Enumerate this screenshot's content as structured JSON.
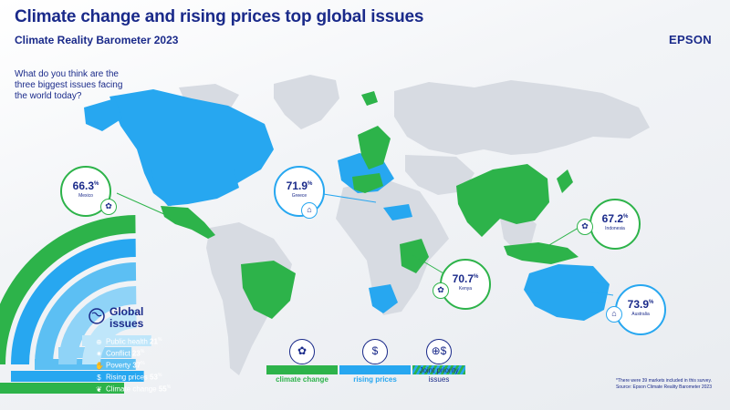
{
  "header": {
    "title": "Climate change and rising prices top global issues",
    "subtitle": "Climate Reality Barometer 2023",
    "brand": "EPSON"
  },
  "question": "What do you think are the three biggest issues facing the world today?",
  "colors": {
    "climate": "#2db34a",
    "prices": "#27a7f0",
    "text": "#1a2a8a",
    "land": "#d7dbe2"
  },
  "callouts": [
    {
      "value": "66.3",
      "unit": "%",
      "country": "Mexico",
      "issue": "climate change",
      "icon": "globe-leaf-icon"
    },
    {
      "value": "71.9",
      "unit": "%",
      "country": "Greece",
      "issue": "rising prices",
      "icon": "house-icon"
    },
    {
      "value": "67.2",
      "unit": "%",
      "country": "Indonesia",
      "issue": "climate change",
      "icon": "globe-leaf-icon"
    },
    {
      "value": "70.7",
      "unit": "%",
      "country": "Kenya",
      "issue": "climate change",
      "icon": "globe-leaf-icon"
    },
    {
      "value": "73.9",
      "unit": "%",
      "country": "Australia",
      "issue": "rising prices",
      "icon": "house-icon"
    }
  ],
  "global_issues": {
    "heading_line1": "Global",
    "heading_line2": "issues",
    "items": [
      {
        "label": "Public health",
        "value": "21",
        "unit": "%",
        "icon": "globe-health-icon",
        "color": "#bfe6fa",
        "share": 21
      },
      {
        "label": "Conflict",
        "value": "23",
        "unit": "%",
        "icon": "conflict-icon",
        "color": "#8fd3f7",
        "share": 23
      },
      {
        "label": "Poverty",
        "value": "37",
        "unit": "%",
        "icon": "hand-icon",
        "color": "#5cbff3",
        "share": 37
      },
      {
        "label": "Rising prices",
        "value": "53",
        "unit": "%",
        "icon": "price-icon",
        "color": "#27a7f0",
        "share": 53
      },
      {
        "label": "Climate change",
        "value": "55",
        "unit": "%",
        "icon": "leaf-icon",
        "color": "#2db34a",
        "share": 55
      }
    ]
  },
  "legend": [
    {
      "line1": "Priority issue",
      "line2": "climate change",
      "type": "climate",
      "icon": "globe-leaf-icon"
    },
    {
      "line1": "Priority issue",
      "line2": "rising prices",
      "type": "prices",
      "icon": "price-icon"
    },
    {
      "line1": "Joint priority",
      "line2": "issues",
      "type": "joint",
      "icon": "globe-price-icon"
    }
  ],
  "footnote": {
    "line1": "*There were 39 markets included in this survey.",
    "line2": "Source: Epson Climate Reality Barometer 2023"
  }
}
